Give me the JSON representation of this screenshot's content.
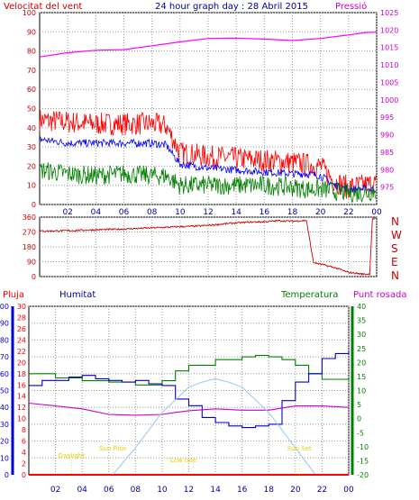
{
  "chart_data": [
    {
      "type": "line",
      "title": "24 hour graph day : 28 Abril 2015",
      "left_label": "Velocitat del vent",
      "right_label": "Pressió",
      "x_ticks": [
        "02",
        "04",
        "06",
        "08",
        "10",
        "12",
        "14",
        "16",
        "18",
        "20",
        "22",
        "00"
      ],
      "y_left_range": [
        0,
        100
      ],
      "y_left_ticks": [
        "0",
        "10",
        "20",
        "30",
        "40",
        "50",
        "60",
        "70",
        "80",
        "90",
        "100"
      ],
      "y_right_range": [
        970,
        1025
      ],
      "y_right_ticks": [
        "975",
        "980",
        "985",
        "990",
        "995",
        "1000",
        "1005",
        "1010",
        "1015",
        "1020",
        "1025"
      ],
      "series": [
        {
          "color": "#ff00ff",
          "axis": "right",
          "x": [
            0,
            2,
            4,
            6,
            8,
            10,
            12,
            14,
            16,
            18,
            20,
            22,
            23.2,
            24
          ],
          "values": [
            1012.3,
            1013.5,
            1014.2,
            1014.4,
            1015.5,
            1016.6,
            1017.6,
            1017.7,
            1017.4,
            1017.0,
            1017.6,
            1018.6,
            1019.3,
            1019.4
          ]
        },
        {
          "color": "#ff0000",
          "axis": "left",
          "noise": 6,
          "x": [
            0,
            2,
            4,
            6,
            8,
            9,
            10,
            12,
            14,
            16,
            18,
            19,
            20,
            21,
            22,
            23,
            24
          ],
          "values": [
            44,
            43,
            42,
            42,
            42,
            41,
            27,
            25,
            24,
            23,
            22,
            21,
            20,
            12,
            9,
            10,
            11
          ]
        },
        {
          "color": "#0000ff",
          "axis": "left",
          "noise": 2,
          "x": [
            0,
            2,
            4,
            6,
            8,
            9,
            10,
            12,
            14,
            16,
            18,
            19,
            20,
            21,
            22,
            23,
            24
          ],
          "values": [
            34,
            32,
            32,
            32,
            32,
            31,
            21,
            19,
            18,
            17,
            16,
            16,
            15,
            10,
            8,
            8,
            8
          ]
        },
        {
          "color": "#008000",
          "axis": "left",
          "noise": 5,
          "x": [
            0,
            2,
            4,
            6,
            8,
            9,
            10,
            12,
            14,
            16,
            18,
            19,
            20,
            21,
            22,
            23,
            24
          ],
          "values": [
            18,
            16,
            15,
            16,
            15,
            15,
            10,
            10,
            10,
            10,
            9,
            8,
            8,
            7,
            6,
            6,
            7
          ]
        }
      ]
    },
    {
      "type": "scatter",
      "y_range": [
        0,
        360
      ],
      "y_ticks": [
        "0",
        "90",
        "180",
        "270",
        "360"
      ],
      "direction_labels": [
        "N",
        "W",
        "S",
        "E",
        "N"
      ],
      "series": [
        {
          "color": "#cc0000",
          "x": [
            0,
            2,
            4,
            6,
            8,
            10,
            11,
            12,
            13,
            14,
            15,
            16,
            17,
            18,
            19,
            19.5,
            20,
            21,
            22,
            23,
            23.5,
            23.7,
            24
          ],
          "values": [
            275,
            278,
            283,
            288,
            295,
            302,
            305,
            310,
            318,
            325,
            330,
            332,
            338,
            335,
            340,
            85,
            75,
            55,
            25,
            15,
            15,
            350,
            350
          ]
        }
      ]
    },
    {
      "type": "line",
      "labels": {
        "rain": "Pluja",
        "humidity": "Humitat",
        "temperature": "Temperatura",
        "dew_point": "Punt rosada"
      },
      "rain_range": [
        0,
        30
      ],
      "rain_ticks": [
        "0",
        "2",
        "4",
        "6",
        "8",
        "10",
        "12",
        "14",
        "16",
        "18",
        "20",
        "22",
        "24",
        "26",
        "28",
        "30"
      ],
      "humidity_range": [
        0,
        100
      ],
      "humidity_ticks": [
        "0",
        "10",
        "20",
        "30",
        "40",
        "50",
        "60",
        "70",
        "80",
        "90",
        "100"
      ],
      "temp_range": [
        -20,
        40
      ],
      "temp_ticks": [
        "-20",
        "-15",
        "-10",
        "-5",
        "0",
        "5",
        "10",
        "15",
        "20",
        "25",
        "30",
        "35",
        "40"
      ],
      "annotations": [
        {
          "text": "Daylight",
          "x": 3.2
        },
        {
          "text": "Sun Rise",
          "x": 6.3
        },
        {
          "text": "Low tide",
          "x": 11.6
        },
        {
          "text": "Sun Set",
          "x": 20.3
        }
      ],
      "series": [
        {
          "color": "#008000",
          "axis": "temp",
          "x": [
            0,
            2,
            4,
            6,
            8,
            9,
            10,
            11,
            12,
            14,
            16,
            17,
            18,
            19,
            20,
            21,
            22,
            24
          ],
          "values": [
            16,
            14.5,
            13.5,
            13,
            12,
            12,
            13.5,
            17,
            19,
            21,
            22,
            22.5,
            22,
            21,
            19,
            16,
            14,
            13
          ]
        },
        {
          "color": "#0000cc",
          "axis": "humidity",
          "x": [
            0,
            1,
            2,
            3,
            4,
            5,
            6,
            7,
            8,
            9,
            10,
            11,
            12,
            13,
            14,
            15,
            16,
            17,
            18,
            19,
            20,
            21,
            22,
            23,
            24
          ],
          "values": [
            53,
            56,
            56,
            58,
            59,
            57,
            56,
            55,
            56,
            54,
            53,
            45,
            41,
            34,
            31,
            29,
            28,
            29,
            30,
            44,
            55,
            60,
            69,
            72,
            73
          ]
        },
        {
          "color": "#cc00cc",
          "axis": "temp",
          "x": [
            0,
            2,
            4,
            6,
            8,
            10,
            11,
            12,
            14,
            16,
            18,
            20,
            22,
            24
          ],
          "values": [
            5.5,
            4.5,
            3.5,
            1.5,
            1.2,
            1.5,
            2.2,
            2.8,
            3.5,
            3.0,
            3.0,
            4.5,
            4.5,
            4.0
          ]
        },
        {
          "color": "#9fcbf5",
          "axis": "humidity",
          "smooth": true,
          "x": [
            6.3,
            8,
            10,
            12,
            13,
            14,
            15,
            16,
            18,
            20,
            21.5
          ],
          "values": [
            0,
            16,
            37,
            52,
            55,
            57,
            55,
            52,
            37,
            16,
            0
          ]
        },
        {
          "color": "#ff0000",
          "axis": "rain",
          "x": [
            0,
            24
          ],
          "values": [
            0,
            0
          ]
        }
      ]
    }
  ]
}
